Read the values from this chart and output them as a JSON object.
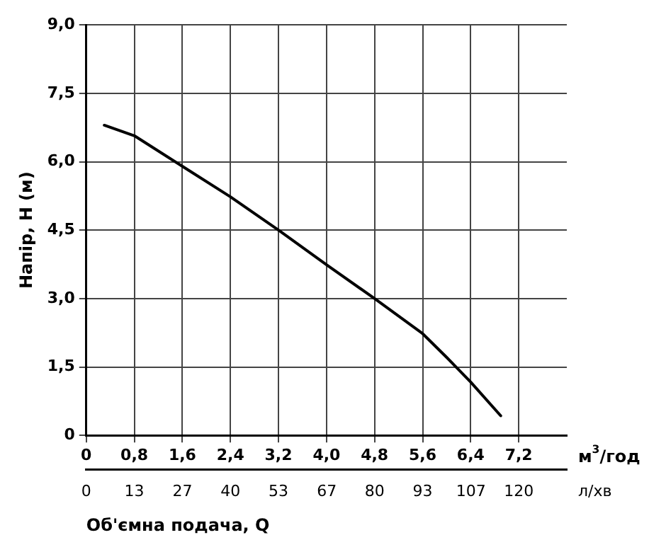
{
  "chart_data": {
    "type": "line",
    "xlabel": "м$^{3}$/год",
    "x2label": "л/хв",
    "ylabel": "Напір, H (м)",
    "annotations": [
      "Об'ємна подача, Q"
    ],
    "x": [
      0.3,
      0.8,
      1.6,
      2.4,
      3.2,
      4.0,
      4.8,
      5.6,
      6.0,
      6.4,
      6.9
    ],
    "series": [
      {
        "color": "#000000",
        "values": [
          6.8,
          6.57,
          5.9,
          5.23,
          4.5,
          3.74,
          3.0,
          2.23,
          1.71,
          1.17,
          0.43
        ]
      }
    ],
    "xlim": [
      0,
      8
    ],
    "ylim": [
      0,
      9
    ],
    "xticks": [
      0,
      {
        "value": 0.8,
        "label": "0,8"
      },
      {
        "value": 1.6,
        "label": "1,6"
      },
      {
        "value": 2.4,
        "label": "2,4"
      },
      {
        "value": 3.2,
        "label": "3,2"
      },
      {
        "value": 4.0,
        "label": "4,0"
      },
      {
        "value": 4.8,
        "label": "4,8"
      },
      {
        "value": 5.6,
        "label": "5,6"
      },
      {
        "value": 6.4,
        "label": "6,4"
      },
      {
        "value": 7.2,
        "label": "7,2"
      }
    ],
    "x2lim": [
      0,
      133.3
    ],
    "x2ticks": [
      0,
      {
        "value": 13.3,
        "label": "13"
      },
      {
        "value": 26.7,
        "label": "27"
      },
      {
        "value": 40,
        "label": "40"
      },
      {
        "value": 53.3,
        "label": "53"
      },
      {
        "value": 66.7,
        "label": "67"
      },
      {
        "value": 80,
        "label": "80"
      },
      {
        "value": 93.3,
        "label": "93"
      },
      {
        "value": 106.7,
        "label": "107"
      },
      {
        "value": 120,
        "label": "120"
      }
    ],
    "yticks": [
      0,
      {
        "value": 1.5,
        "label": "1,5"
      },
      {
        "value": 3.0,
        "label": "3,0"
      },
      {
        "value": 4.5,
        "label": "4,5"
      },
      {
        "value": 6.0,
        "label": "6,0"
      },
      {
        "value": 7.5,
        "label": "7,5"
      },
      {
        "value": 9.0,
        "label": "9,0"
      }
    ],
    "grid": true,
    "legend": false,
    "marker": "none",
    "line_style": "solid"
  }
}
